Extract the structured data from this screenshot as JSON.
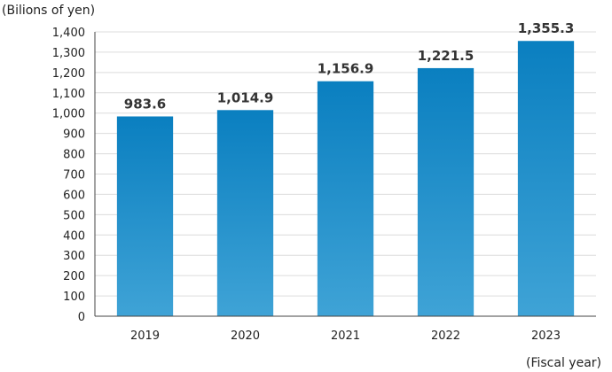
{
  "chart_data": {
    "type": "bar",
    "title": "",
    "ylabel": "(Bilions of yen)",
    "xlabel": "(Fiscal year)",
    "categories": [
      "2019",
      "2020",
      "2021",
      "2022",
      "2023"
    ],
    "values": [
      983.6,
      1014.9,
      1156.9,
      1221.5,
      1355.3
    ],
    "value_labels": [
      "983.6",
      "1,014.9",
      "1,156.9",
      "1,221.5",
      "1,355.3"
    ],
    "ylim": [
      0,
      1400
    ],
    "yticks": [
      0,
      100,
      200,
      300,
      400,
      500,
      600,
      700,
      800,
      900,
      1000,
      1100,
      1200,
      1300,
      1400
    ],
    "ytick_labels": [
      "0",
      "100",
      "200",
      "300",
      "400",
      "500",
      "600",
      "700",
      "800",
      "900",
      "1,000",
      "1,100",
      "1,200",
      "1,300",
      "1,400"
    ],
    "grid": true,
    "bar_color_top": "#0a7fc0",
    "bar_color_bottom": "#3fa3d6"
  }
}
